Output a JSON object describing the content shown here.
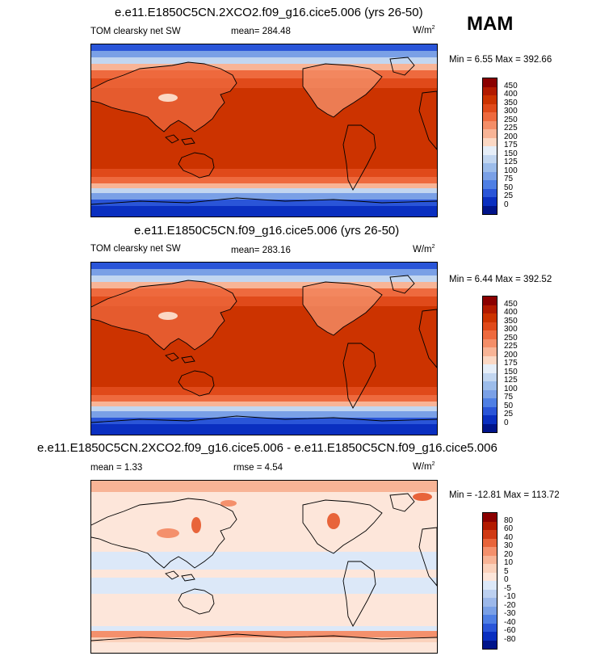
{
  "season": "MAM",
  "panels": [
    {
      "title": "e.e11.E1850C5CN.2XCO2.f09_g16.cice5.006 (yrs 26-50)",
      "left_label": "TOM clearsky net SW",
      "mean_label": "mean= 284.48",
      "units": "W/m",
      "units_sup": "2",
      "minmax": "Min =   6.55 Max = 392.66",
      "scale": "abs",
      "colorbar_labels": [
        "450",
        "400",
        "350",
        "300",
        "250",
        "225",
        "200",
        "175",
        "150",
        "125",
        "100",
        "75",
        "50",
        "25",
        "0"
      ],
      "colorbar_colors": [
        "#8b0000",
        "#b21a00",
        "#cc3300",
        "#e04a1a",
        "#ee6a3e",
        "#f48e68",
        "#f8b496",
        "#fbd8c4",
        "#e6eef8",
        "#c2d6f0",
        "#9cbcea",
        "#7aa0e6",
        "#4f7fe4",
        "#2a55d8",
        "#0a2fc0",
        "#00148a"
      ]
    },
    {
      "title": "e.e11.E1850C5CN.f09_g16.cice5.006 (yrs 26-50)",
      "left_label": "TOM clearsky net SW",
      "mean_label": "mean= 283.16",
      "units": "W/m",
      "units_sup": "2",
      "minmax": "Min =   6.44 Max = 392.52",
      "scale": "abs",
      "colorbar_labels": [
        "450",
        "400",
        "350",
        "300",
        "250",
        "225",
        "200",
        "175",
        "150",
        "125",
        "100",
        "75",
        "50",
        "25",
        "0"
      ],
      "colorbar_colors": [
        "#8b0000",
        "#b21a00",
        "#cc3300",
        "#e04a1a",
        "#ee6a3e",
        "#f48e68",
        "#f8b496",
        "#fbd8c4",
        "#e6eef8",
        "#c2d6f0",
        "#9cbcea",
        "#7aa0e6",
        "#4f7fe4",
        "#2a55d8",
        "#0a2fc0",
        "#00148a"
      ]
    },
    {
      "title": "e.e11.E1850C5CN.2XCO2.f09_g16.cice5.006 - e.e11.E1850C5CN.f09_g16.cice5.006",
      "left_label": "mean =   1.33",
      "mean_label": "rmse =   4.54",
      "units": "W/m",
      "units_sup": "2",
      "minmax": "Min = -12.81 Max = 113.72",
      "scale": "diff",
      "colorbar_labels": [
        "80",
        "60",
        "40",
        "30",
        "20",
        "10",
        "5",
        "0",
        "-5",
        "-10",
        "-20",
        "-30",
        "-40",
        "-60",
        "-80"
      ],
      "colorbar_colors": [
        "#8b0000",
        "#b21a00",
        "#d03a14",
        "#e8643a",
        "#f4906c",
        "#f8b496",
        "#fbd2bc",
        "#fde6da",
        "#dce8f8",
        "#bcd0f0",
        "#9cb8ea",
        "#7aa0e6",
        "#4f7fe4",
        "#2a55d8",
        "#0a2fc0",
        "#00148a"
      ]
    }
  ]
}
